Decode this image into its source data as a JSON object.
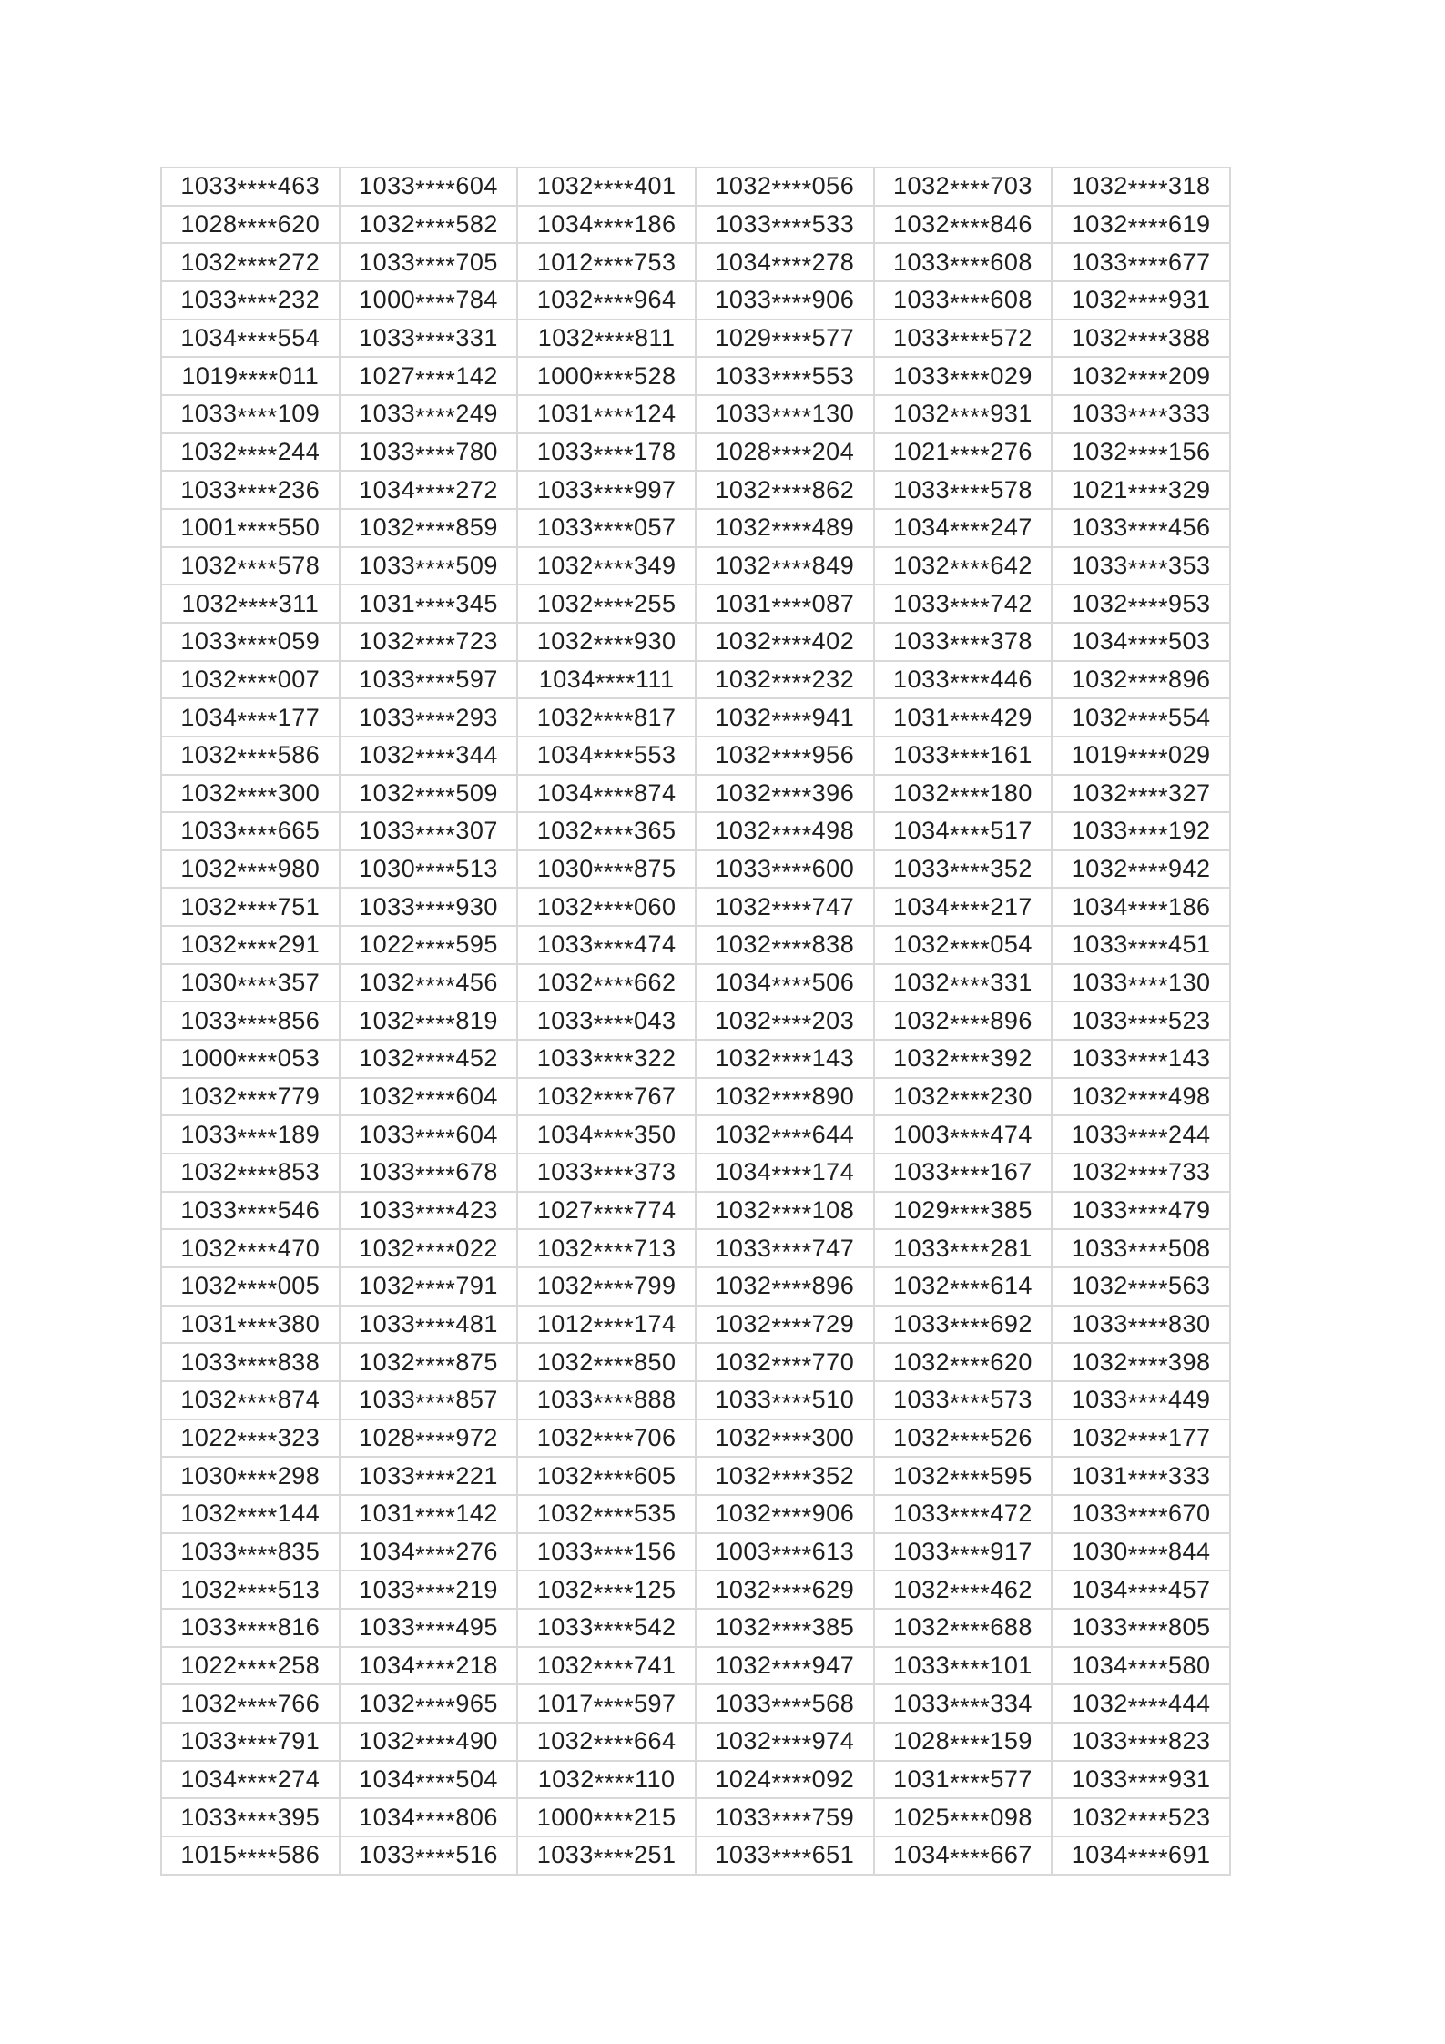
{
  "page": {
    "background": "#ffffff"
  },
  "table": {
    "border_color": "#d8d8d8",
    "text_color": "#1f1f1f",
    "columns": 6,
    "mask_token": "****",
    "rows": [
      [
        "1033****463",
        "1033****604",
        "1032****401",
        "1032****056",
        "1032****703",
        "1032****318"
      ],
      [
        "1028****620",
        "1032****582",
        "1034****186",
        "1033****533",
        "1032****846",
        "1032****619"
      ],
      [
        "1032****272",
        "1033****705",
        "1012****753",
        "1034****278",
        "1033****608",
        "1033****677"
      ],
      [
        "1033****232",
        "1000****784",
        "1032****964",
        "1033****906",
        "1033****608",
        "1032****931"
      ],
      [
        "1034****554",
        "1033****331",
        "1032****811",
        "1029****577",
        "1033****572",
        "1032****388"
      ],
      [
        "1019****011",
        "1027****142",
        "1000****528",
        "1033****553",
        "1033****029",
        "1032****209"
      ],
      [
        "1033****109",
        "1033****249",
        "1031****124",
        "1033****130",
        "1032****931",
        "1033****333"
      ],
      [
        "1032****244",
        "1033****780",
        "1033****178",
        "1028****204",
        "1021****276",
        "1032****156"
      ],
      [
        "1033****236",
        "1034****272",
        "1033****997",
        "1032****862",
        "1033****578",
        "1021****329"
      ],
      [
        "1001****550",
        "1032****859",
        "1033****057",
        "1032****489",
        "1034****247",
        "1033****456"
      ],
      [
        "1032****578",
        "1033****509",
        "1032****349",
        "1032****849",
        "1032****642",
        "1033****353"
      ],
      [
        "1032****311",
        "1031****345",
        "1032****255",
        "1031****087",
        "1033****742",
        "1032****953"
      ],
      [
        "1033****059",
        "1032****723",
        "1032****930",
        "1032****402",
        "1033****378",
        "1034****503"
      ],
      [
        "1032****007",
        "1033****597",
        "1034****111",
        "1032****232",
        "1033****446",
        "1032****896"
      ],
      [
        "1034****177",
        "1033****293",
        "1032****817",
        "1032****941",
        "1031****429",
        "1032****554"
      ],
      [
        "1032****586",
        "1032****344",
        "1034****553",
        "1032****956",
        "1033****161",
        "1019****029"
      ],
      [
        "1032****300",
        "1032****509",
        "1034****874",
        "1032****396",
        "1032****180",
        "1032****327"
      ],
      [
        "1033****665",
        "1033****307",
        "1032****365",
        "1032****498",
        "1034****517",
        "1033****192"
      ],
      [
        "1032****980",
        "1030****513",
        "1030****875",
        "1033****600",
        "1033****352",
        "1032****942"
      ],
      [
        "1032****751",
        "1033****930",
        "1032****060",
        "1032****747",
        "1034****217",
        "1034****186"
      ],
      [
        "1032****291",
        "1022****595",
        "1033****474",
        "1032****838",
        "1032****054",
        "1033****451"
      ],
      [
        "1030****357",
        "1032****456",
        "1032****662",
        "1034****506",
        "1032****331",
        "1033****130"
      ],
      [
        "1033****856",
        "1032****819",
        "1033****043",
        "1032****203",
        "1032****896",
        "1033****523"
      ],
      [
        "1000****053",
        "1032****452",
        "1033****322",
        "1032****143",
        "1032****392",
        "1033****143"
      ],
      [
        "1032****779",
        "1032****604",
        "1032****767",
        "1032****890",
        "1032****230",
        "1032****498"
      ],
      [
        "1033****189",
        "1033****604",
        "1034****350",
        "1032****644",
        "1003****474",
        "1033****244"
      ],
      [
        "1032****853",
        "1033****678",
        "1033****373",
        "1034****174",
        "1033****167",
        "1032****733"
      ],
      [
        "1033****546",
        "1033****423",
        "1027****774",
        "1032****108",
        "1029****385",
        "1033****479"
      ],
      [
        "1032****470",
        "1032****022",
        "1032****713",
        "1033****747",
        "1033****281",
        "1033****508"
      ],
      [
        "1032****005",
        "1032****791",
        "1032****799",
        "1032****896",
        "1032****614",
        "1032****563"
      ],
      [
        "1031****380",
        "1033****481",
        "1012****174",
        "1032****729",
        "1033****692",
        "1033****830"
      ],
      [
        "1033****838",
        "1032****875",
        "1032****850",
        "1032****770",
        "1032****620",
        "1032****398"
      ],
      [
        "1032****874",
        "1033****857",
        "1033****888",
        "1033****510",
        "1033****573",
        "1033****449"
      ],
      [
        "1022****323",
        "1028****972",
        "1032****706",
        "1032****300",
        "1032****526",
        "1032****177"
      ],
      [
        "1030****298",
        "1033****221",
        "1032****605",
        "1032****352",
        "1032****595",
        "1031****333"
      ],
      [
        "1032****144",
        "1031****142",
        "1032****535",
        "1032****906",
        "1033****472",
        "1033****670"
      ],
      [
        "1033****835",
        "1034****276",
        "1033****156",
        "1003****613",
        "1033****917",
        "1030****844"
      ],
      [
        "1032****513",
        "1033****219",
        "1032****125",
        "1032****629",
        "1032****462",
        "1034****457"
      ],
      [
        "1033****816",
        "1033****495",
        "1033****542",
        "1032****385",
        "1032****688",
        "1033****805"
      ],
      [
        "1022****258",
        "1034****218",
        "1032****741",
        "1032****947",
        "1033****101",
        "1034****580"
      ],
      [
        "1032****766",
        "1032****965",
        "1017****597",
        "1033****568",
        "1033****334",
        "1032****444"
      ],
      [
        "1033****791",
        "1032****490",
        "1032****664",
        "1032****974",
        "1028****159",
        "1033****823"
      ],
      [
        "1034****274",
        "1034****504",
        "1032****110",
        "1024****092",
        "1031****577",
        "1033****931"
      ],
      [
        "1033****395",
        "1034****806",
        "1000****215",
        "1033****759",
        "1025****098",
        "1032****523"
      ],
      [
        "1015****586",
        "1033****516",
        "1033****251",
        "1033****651",
        "1034****667",
        "1034****691"
      ]
    ]
  }
}
